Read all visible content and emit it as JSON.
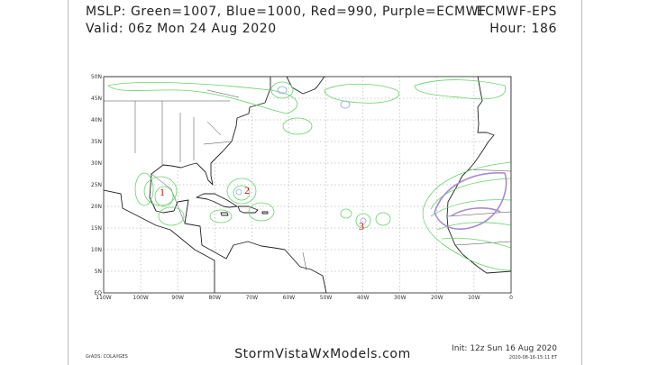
{
  "header": {
    "legend": "MSLP: Green=1007, Blue=1000, Red=990, Purple=ECMWF",
    "valid": "Valid: 06z Mon 24 Aug 2020",
    "model": "ECMWF-EPS",
    "hour": "Hour: 186"
  },
  "map": {
    "lat_labels": [
      "50N",
      "45N",
      "40N",
      "35N",
      "30N",
      "25N",
      "20N",
      "15N",
      "10N",
      "5N",
      "EQ"
    ],
    "lon_labels": [
      "110W",
      "100W",
      "90W",
      "80W",
      "70W",
      "60W",
      "50W",
      "40W",
      "30W",
      "20W",
      "10W",
      "0"
    ],
    "markers": [
      "1",
      "2",
      "3"
    ]
  },
  "footer": {
    "credit": "GrADS: COLA/IGES",
    "site": "StormVistaWxModels.com",
    "init": "Init: 12z Sun 16 Aug 2020",
    "timestamp": "2020-08-16-15:11 ET"
  }
}
